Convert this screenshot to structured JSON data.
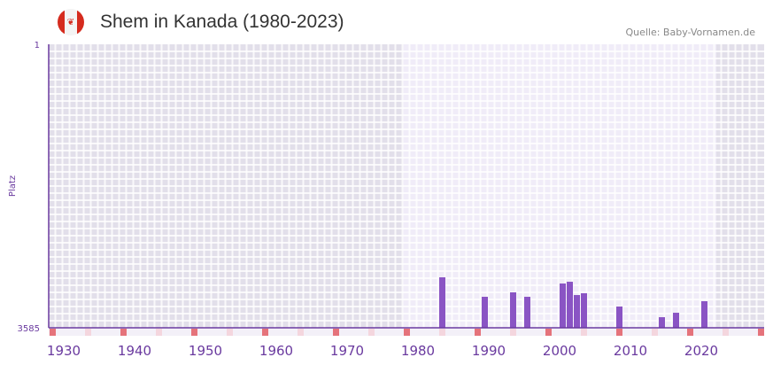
{
  "header": {
    "title": "Shem in Kanada (1980-2023)",
    "source": "Quelle: Baby-Vornamen.de",
    "flag": "canada-flag-icon"
  },
  "chart_data": {
    "type": "bar",
    "title": "Shem in Kanada (1980-2023)",
    "ylabel": "Platz",
    "xlabel": "",
    "ylim": [
      3585,
      1
    ],
    "y_ticks": [
      "1",
      "3585"
    ],
    "x_ticks": [
      "1930",
      "1940",
      "1950",
      "1960",
      "1970",
      "1980",
      "1990",
      "2000",
      "2010",
      "2020"
    ],
    "xlim": [
      1927,
      2028
    ],
    "highlight_range": [
      1978,
      2022
    ],
    "x": [
      1983,
      1989,
      1993,
      1995,
      2000,
      2001,
      2002,
      2003,
      2008,
      2014,
      2016,
      2020
    ],
    "values": [
      2947,
      3193,
      3137,
      3193,
      3025,
      3003,
      3171,
      3148,
      3316,
      3451,
      3395,
      3249
    ],
    "colors": {
      "bar": "#8a54c4",
      "axis": "#6a3a9f",
      "shaded": "#e2dfea",
      "highlight": "#f0ecf8",
      "marker_red": "#e5737b",
      "marker_pink": "#f4d6de"
    }
  }
}
